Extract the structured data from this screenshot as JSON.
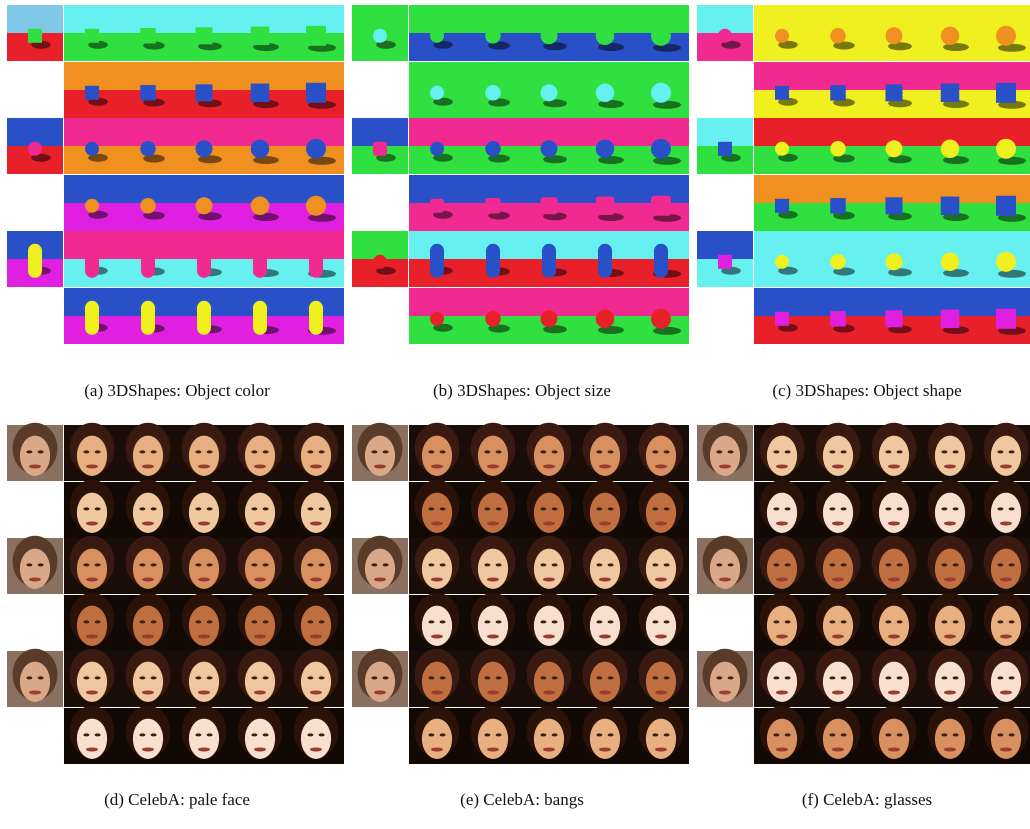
{
  "figure": {
    "captions": [
      "(a) 3DShapes: Object color",
      "(b) 3DShapes: Object size",
      "(c) 3DShapes: Object shape",
      "(d) CelebA: pale face",
      "(e) CelebA: bangs",
      "(f) CelebA: glasses"
    ]
  }
}
